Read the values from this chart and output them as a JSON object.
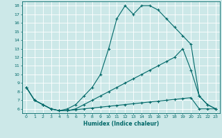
{
  "xlabel": "Humidex (Indice chaleur)",
  "background_color": "#cce8e8",
  "grid_color": "#ffffff",
  "line_color": "#006868",
  "xlim": [
    -0.5,
    23.5
  ],
  "ylim": [
    5.5,
    18.5
  ],
  "xticks": [
    0,
    1,
    2,
    3,
    4,
    5,
    6,
    7,
    8,
    9,
    10,
    11,
    12,
    13,
    14,
    15,
    16,
    17,
    18,
    19,
    20,
    21,
    22,
    23
  ],
  "yticks": [
    6,
    7,
    8,
    9,
    10,
    11,
    12,
    13,
    14,
    15,
    16,
    17,
    18
  ],
  "series": [
    {
      "x": [
        0,
        1,
        2,
        3,
        4,
        5,
        6,
        7,
        8,
        9,
        10,
        11,
        12,
        13,
        14,
        15,
        16,
        17,
        18,
        19,
        20,
        21,
        22,
        23
      ],
      "y": [
        8.5,
        7.0,
        6.5,
        6.0,
        5.8,
        5.8,
        5.9,
        6.0,
        6.1,
        6.2,
        6.3,
        6.4,
        6.5,
        6.6,
        6.7,
        6.8,
        6.9,
        7.0,
        7.1,
        7.2,
        7.3,
        6.0,
        6.0,
        6.0
      ]
    },
    {
      "x": [
        0,
        1,
        2,
        3,
        4,
        5,
        6,
        7,
        8,
        9,
        10,
        11,
        12,
        13,
        14,
        15,
        16,
        17,
        18,
        19,
        20,
        21,
        22,
        23
      ],
      "y": [
        8.5,
        7.0,
        6.5,
        6.0,
        5.8,
        5.8,
        6.0,
        6.5,
        7.0,
        7.5,
        8.0,
        8.5,
        9.0,
        9.5,
        10.0,
        10.5,
        11.0,
        11.5,
        12.0,
        13.0,
        10.5,
        7.5,
        6.5,
        6.0
      ]
    },
    {
      "x": [
        0,
        1,
        2,
        3,
        4,
        5,
        6,
        7,
        8,
        9,
        10,
        11,
        12,
        13,
        14,
        15,
        16,
        17,
        18,
        19,
        20,
        21,
        22,
        23
      ],
      "y": [
        8.5,
        7.0,
        6.5,
        6.0,
        5.8,
        6.0,
        6.5,
        7.5,
        8.5,
        10.0,
        13.0,
        16.5,
        18.0,
        17.0,
        18.0,
        18.0,
        17.5,
        16.5,
        15.5,
        14.5,
        13.5,
        7.5,
        6.5,
        6.0
      ]
    }
  ]
}
